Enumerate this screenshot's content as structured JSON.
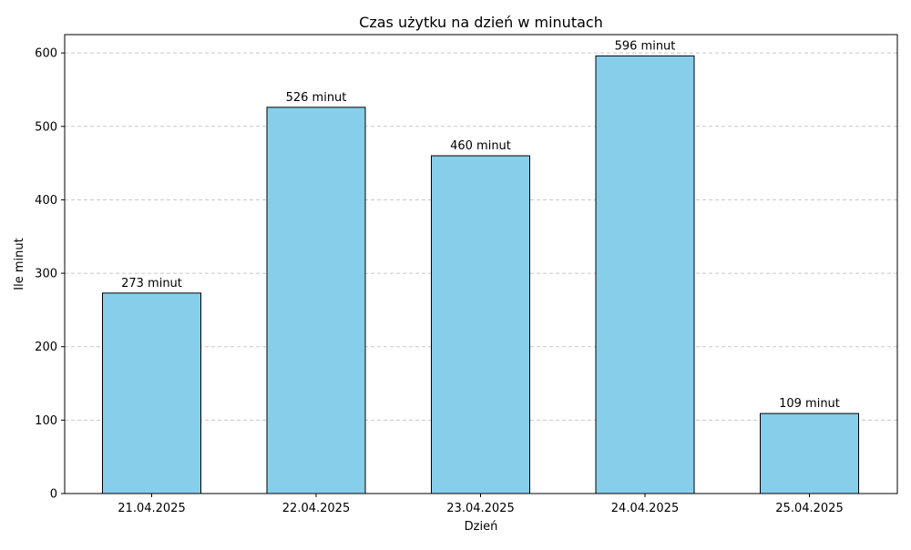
{
  "chart_data": {
    "type": "bar",
    "title": "Czas użytku na dzień w minutach",
    "xlabel": "Dzień",
    "ylabel": "Ile minut",
    "categories": [
      "21.04.2025",
      "22.04.2025",
      "23.04.2025",
      "24.04.2025",
      "25.04.2025"
    ],
    "values": [
      273,
      526,
      460,
      596,
      109
    ],
    "data_labels": [
      "273 minut",
      "526 minut",
      "460 minut",
      "596 minut",
      "109 minut"
    ],
    "ylim": [
      0,
      625
    ],
    "yticks": [
      0,
      100,
      200,
      300,
      400,
      500,
      600
    ],
    "grid": "y-axis dashed",
    "bar_color": "#87CEEB",
    "bar_edge_color": "#000000",
    "grid_color": "#c8c8c8"
  }
}
